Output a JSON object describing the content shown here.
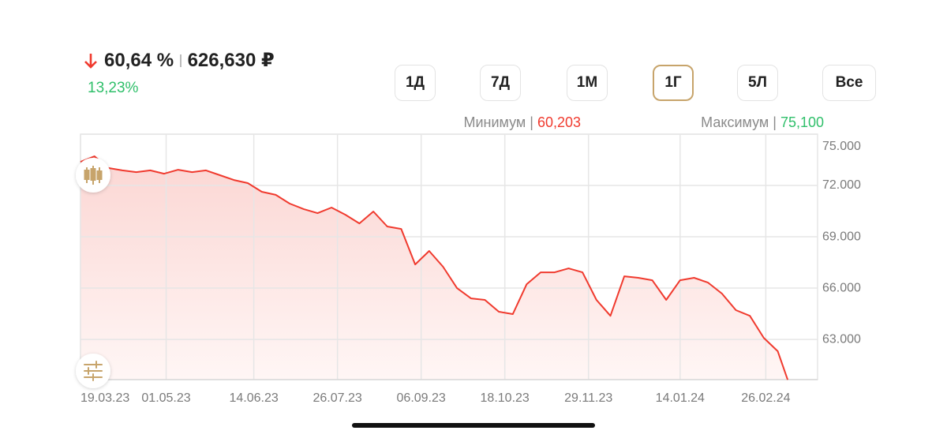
{
  "header": {
    "change_percent": "60,64 %",
    "price": "626,630 ₽",
    "yield": "13,23%"
  },
  "periods": [
    "1Д",
    "7Д",
    "1М",
    "1Г",
    "5Л",
    "Все"
  ],
  "selected_period": 3,
  "range": {
    "min_label": "Минимум",
    "min_value": "60,203",
    "max_label": "Максимум",
    "max_value": "75,100"
  },
  "chart_data": {
    "type": "line",
    "x": [
      "19.03.23",
      "26.03.23",
      "02.04.23",
      "09.04.23",
      "16.04.23",
      "23.04.23",
      "30.04.23",
      "07.05.23",
      "14.05.23",
      "21.05.23",
      "28.05.23",
      "04.06.23",
      "11.06.23",
      "18.06.23",
      "25.06.23",
      "02.07.23",
      "09.07.23",
      "16.07.23",
      "23.07.23",
      "30.07.23",
      "06.08.23",
      "13.08.23",
      "20.08.23",
      "27.08.23",
      "03.09.23",
      "10.09.23",
      "17.09.23",
      "24.09.23",
      "01.10.23",
      "08.10.23",
      "15.10.23",
      "22.10.23",
      "29.10.23",
      "05.11.23",
      "12.11.23",
      "19.11.23",
      "26.11.23",
      "03.12.23",
      "10.12.23",
      "17.12.23",
      "24.12.23",
      "31.12.23",
      "07.01.24",
      "14.01.24",
      "21.01.24",
      "28.01.24",
      "04.02.24",
      "11.02.24",
      "18.02.24",
      "25.02.24",
      "03.03.24",
      "08.03.24"
    ],
    "values": [
      73.38,
      73.71,
      73.02,
      72.88,
      72.78,
      72.88,
      72.69,
      72.92,
      72.78,
      72.88,
      72.6,
      72.32,
      72.14,
      71.63,
      71.45,
      70.94,
      70.62,
      70.38,
      70.71,
      70.29,
      69.78,
      70.48,
      69.6,
      69.46,
      67.38,
      68.17,
      67.25,
      66.0,
      65.4,
      65.31,
      64.62,
      64.48,
      66.23,
      66.92,
      66.92,
      67.15,
      66.92,
      65.31,
      64.38,
      66.69,
      66.6,
      66.46,
      65.31,
      66.46,
      66.6,
      66.32,
      65.68,
      64.71,
      64.38,
      63.09,
      62.31,
      60.64
    ],
    "color": "#f03a2e",
    "xlim": [
      "19.03.23",
      "23.03.24"
    ],
    "xticks": [
      "19.03.23",
      "01.05.23",
      "14.06.23",
      "26.07.23",
      "06.09.23",
      "18.10.23",
      "29.11.23",
      "14.01.24",
      "26.02.24"
    ],
    "ylim": [
      60.65,
      75
    ],
    "yticks": [
      {
        "value": 75,
        "label": "75.000"
      },
      {
        "value": 72,
        "label": "72.000"
      },
      {
        "value": 69,
        "label": "69.000"
      },
      {
        "value": 66,
        "label": "66.000"
      },
      {
        "value": 63,
        "label": "63.000"
      }
    ],
    "grid": true
  }
}
